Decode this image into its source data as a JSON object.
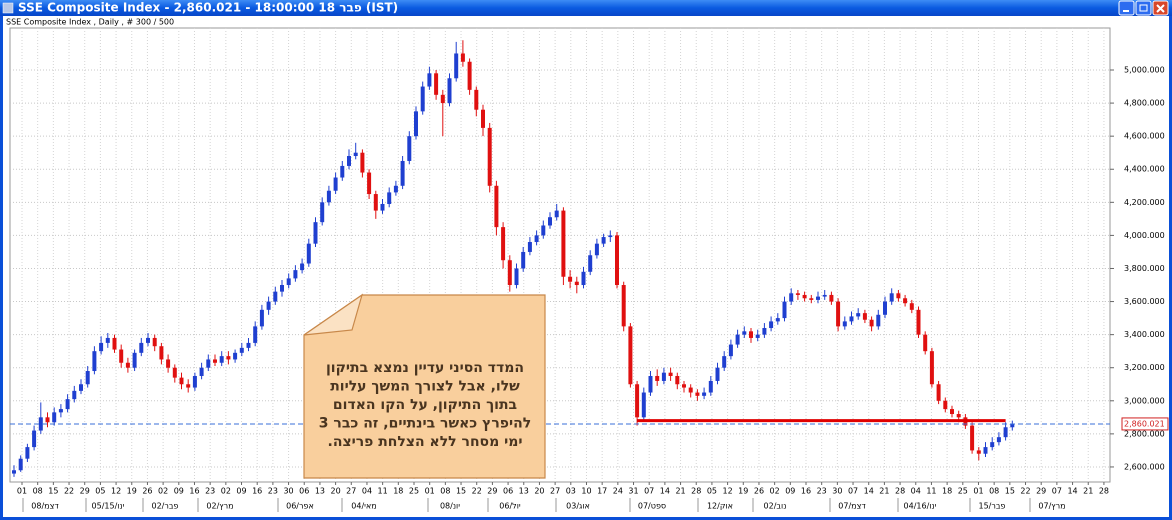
{
  "window_title": "SSE Composite Index - 2,860.021 - 18:00:00  18 פבר (IST)",
  "chart_data": {
    "type": "candlestick",
    "title": "SSE Composite Index , Daily , # 300 / 500",
    "up_color": "#1f3fd0",
    "down_color": "#e01010",
    "ylim": [
      2509,
      5254
    ],
    "yticks": [
      {
        "value": 2600,
        "label": "2,600.000"
      },
      {
        "value": 2800,
        "label": "2,800.000"
      },
      {
        "value": 3000,
        "label": "3,000.000"
      },
      {
        "value": 3200,
        "label": "3,200.000"
      },
      {
        "value": 3400,
        "label": "3,400.000"
      },
      {
        "value": 3600,
        "label": "3,600.000"
      },
      {
        "value": 3800,
        "label": "3,800.000"
      },
      {
        "value": 4000,
        "label": "4,000.000"
      },
      {
        "value": 4200,
        "label": "4,200.000"
      },
      {
        "value": 4400,
        "label": "4,400.000"
      },
      {
        "value": 4600,
        "label": "4,600.000"
      },
      {
        "value": 4800,
        "label": "4,800.000"
      },
      {
        "value": 5000,
        "label": "5,000.000"
      }
    ],
    "grid": true,
    "last_price": {
      "value": 2860.021,
      "label": "2,860.021"
    },
    "level_line": {
      "value": 2880,
      "color": "#e00000"
    },
    "x_day_labels": [
      "01",
      "08",
      "15",
      "22",
      "29",
      "05",
      "12",
      "19",
      "26",
      "02",
      "09",
      "16",
      "23",
      "02",
      "09",
      "16",
      "23",
      "30",
      "06",
      "13",
      "20",
      "27",
      "04",
      "11",
      "18",
      "25",
      "01",
      "08",
      "15",
      "22",
      "29",
      "06",
      "13",
      "20",
      "27",
      "03",
      "10",
      "17",
      "24",
      "31",
      "07",
      "14",
      "21",
      "28",
      "05",
      "12",
      "19",
      "26",
      "02",
      "09",
      "16",
      "23",
      "30",
      "07",
      "14",
      "21",
      "28",
      "04",
      "11",
      "18",
      "25",
      "01",
      "08",
      "15",
      "22",
      "29",
      "07",
      "14",
      "21",
      "28"
    ],
    "x_month_labels": [
      "08/דצמ",
      "05/15/ינו",
      "02/פבר",
      "02/מרץ",
      "06/אפר",
      "04/מאי",
      "08/יונ",
      "06/יול",
      "03/אוג",
      "07/ספט",
      "12/אוק",
      "02/נוב",
      "07/דצמ",
      "04/16/ינו",
      "15/פבר",
      "07/מרץ"
    ],
    "annotation": {
      "lines": [
        "המדד הסיני עדיין נמצא  בתיקון",
        "שלו, אבל לצורך המשך עליות",
        "בתוך התיקון, על הקו האדום",
        "להיפרץ כאשר בינתיים, זה כבר 3",
        "ימי מסחר ללא הצלחת פריצה."
      ]
    },
    "ohlc": [
      [
        2560,
        2610,
        2540,
        2580
      ],
      [
        2580,
        2670,
        2570,
        2650
      ],
      [
        2650,
        2740,
        2630,
        2720
      ],
      [
        2720,
        2850,
        2700,
        2820
      ],
      [
        2820,
        2990,
        2800,
        2900
      ],
      [
        2900,
        2930,
        2840,
        2870
      ],
      [
        2870,
        2960,
        2850,
        2930
      ],
      [
        2930,
        2980,
        2900,
        2950
      ],
      [
        2950,
        3040,
        2930,
        3010
      ],
      [
        3010,
        3090,
        2990,
        3060
      ],
      [
        3060,
        3130,
        3040,
        3100
      ],
      [
        3100,
        3210,
        3080,
        3180
      ],
      [
        3180,
        3330,
        3160,
        3300
      ],
      [
        3300,
        3390,
        3280,
        3350
      ],
      [
        3350,
        3410,
        3320,
        3380
      ],
      [
        3380,
        3400,
        3290,
        3310
      ],
      [
        3310,
        3340,
        3200,
        3230
      ],
      [
        3230,
        3260,
        3170,
        3200
      ],
      [
        3200,
        3310,
        3180,
        3290
      ],
      [
        3290,
        3380,
        3270,
        3350
      ],
      [
        3350,
        3410,
        3330,
        3380
      ],
      [
        3380,
        3400,
        3300,
        3330
      ],
      [
        3330,
        3350,
        3220,
        3250
      ],
      [
        3250,
        3280,
        3170,
        3200
      ],
      [
        3200,
        3220,
        3110,
        3140
      ],
      [
        3140,
        3170,
        3070,
        3100
      ],
      [
        3100,
        3130,
        3050,
        3080
      ],
      [
        3080,
        3170,
        3060,
        3150
      ],
      [
        3150,
        3230,
        3130,
        3200
      ],
      [
        3200,
        3280,
        3180,
        3250
      ],
      [
        3250,
        3280,
        3210,
        3230
      ],
      [
        3230,
        3300,
        3210,
        3270
      ],
      [
        3270,
        3300,
        3220,
        3250
      ],
      [
        3250,
        3310,
        3230,
        3290
      ],
      [
        3290,
        3350,
        3270,
        3320
      ],
      [
        3320,
        3380,
        3300,
        3350
      ],
      [
        3350,
        3480,
        3330,
        3450
      ],
      [
        3450,
        3580,
        3430,
        3550
      ],
      [
        3550,
        3630,
        3520,
        3600
      ],
      [
        3600,
        3690,
        3580,
        3660
      ],
      [
        3660,
        3730,
        3630,
        3700
      ],
      [
        3700,
        3770,
        3680,
        3740
      ],
      [
        3740,
        3820,
        3720,
        3790
      ],
      [
        3790,
        3860,
        3770,
        3830
      ],
      [
        3830,
        3980,
        3810,
        3950
      ],
      [
        3950,
        4110,
        3930,
        4080
      ],
      [
        4080,
        4230,
        4060,
        4200
      ],
      [
        4200,
        4300,
        4180,
        4270
      ],
      [
        4270,
        4380,
        4250,
        4350
      ],
      [
        4350,
        4450,
        4330,
        4420
      ],
      [
        4420,
        4520,
        4400,
        4480
      ],
      [
        4480,
        4560,
        4460,
        4500
      ],
      [
        4500,
        4520,
        4350,
        4380
      ],
      [
        4380,
        4400,
        4220,
        4250
      ],
      [
        4250,
        4270,
        4100,
        4150
      ],
      [
        4150,
        4220,
        4130,
        4190
      ],
      [
        4190,
        4290,
        4170,
        4260
      ],
      [
        4260,
        4330,
        4240,
        4300
      ],
      [
        4300,
        4480,
        4280,
        4450
      ],
      [
        4450,
        4630,
        4430,
        4600
      ],
      [
        4600,
        4780,
        4580,
        4750
      ],
      [
        4750,
        4930,
        4730,
        4900
      ],
      [
        4900,
        5020,
        4880,
        4980
      ],
      [
        4980,
        5000,
        4820,
        4850
      ],
      [
        4850,
        4880,
        4600,
        4800
      ],
      [
        4800,
        4980,
        4780,
        4950
      ],
      [
        4950,
        5170,
        4930,
        5100
      ],
      [
        5100,
        5180,
        5020,
        5050
      ],
      [
        5050,
        5070,
        4850,
        4880
      ],
      [
        4880,
        4900,
        4720,
        4760
      ],
      [
        4760,
        4790,
        4600,
        4650
      ],
      [
        4650,
        4680,
        4260,
        4300
      ],
      [
        4300,
        4330,
        4000,
        4050
      ],
      [
        4050,
        4080,
        3800,
        3850
      ],
      [
        3850,
        3880,
        3660,
        3700
      ],
      [
        3700,
        3830,
        3680,
        3800
      ],
      [
        3800,
        3930,
        3780,
        3900
      ],
      [
        3900,
        3990,
        3880,
        3960
      ],
      [
        3960,
        4030,
        3940,
        4000
      ],
      [
        4000,
        4090,
        3980,
        4060
      ],
      [
        4060,
        4140,
        4040,
        4110
      ],
      [
        4110,
        4190,
        4090,
        4150
      ],
      [
        4150,
        4170,
        3700,
        3750
      ],
      [
        3750,
        3790,
        3680,
        3720
      ],
      [
        3720,
        3750,
        3650,
        3700
      ],
      [
        3700,
        3810,
        3680,
        3780
      ],
      [
        3780,
        3910,
        3760,
        3880
      ],
      [
        3880,
        3980,
        3860,
        3950
      ],
      [
        3950,
        4010,
        3930,
        3990
      ],
      [
        3990,
        4030,
        3960,
        4000
      ],
      [
        4000,
        4020,
        3680,
        3700
      ],
      [
        3700,
        3720,
        3420,
        3450
      ],
      [
        3450,
        3470,
        3080,
        3100
      ],
      [
        3100,
        3120,
        2850,
        2900
      ],
      [
        2900,
        3080,
        2880,
        3050
      ],
      [
        3050,
        3180,
        3030,
        3150
      ],
      [
        3150,
        3190,
        3090,
        3120
      ],
      [
        3120,
        3200,
        3100,
        3170
      ],
      [
        3170,
        3200,
        3120,
        3150
      ],
      [
        3150,
        3170,
        3070,
        3100
      ],
      [
        3100,
        3120,
        3050,
        3080
      ],
      [
        3080,
        3100,
        3020,
        3050
      ],
      [
        3050,
        3070,
        3000,
        3030
      ],
      [
        3030,
        3080,
        3010,
        3050
      ],
      [
        3050,
        3150,
        3030,
        3120
      ],
      [
        3120,
        3230,
        3100,
        3200
      ],
      [
        3200,
        3300,
        3180,
        3270
      ],
      [
        3270,
        3370,
        3250,
        3340
      ],
      [
        3340,
        3430,
        3320,
        3400
      ],
      [
        3400,
        3450,
        3380,
        3420
      ],
      [
        3420,
        3440,
        3350,
        3380
      ],
      [
        3380,
        3430,
        3360,
        3400
      ],
      [
        3400,
        3470,
        3380,
        3440
      ],
      [
        3440,
        3510,
        3420,
        3480
      ],
      [
        3480,
        3530,
        3460,
        3500
      ],
      [
        3500,
        3630,
        3480,
        3600
      ],
      [
        3600,
        3680,
        3580,
        3650
      ],
      [
        3650,
        3670,
        3610,
        3640
      ],
      [
        3640,
        3660,
        3600,
        3620
      ],
      [
        3620,
        3640,
        3590,
        3610
      ],
      [
        3610,
        3660,
        3590,
        3630
      ],
      [
        3630,
        3670,
        3610,
        3640
      ],
      [
        3640,
        3660,
        3580,
        3600
      ],
      [
        3600,
        3620,
        3420,
        3450
      ],
      [
        3450,
        3510,
        3430,
        3480
      ],
      [
        3480,
        3540,
        3460,
        3510
      ],
      [
        3510,
        3560,
        3490,
        3530
      ],
      [
        3530,
        3550,
        3470,
        3490
      ],
      [
        3490,
        3510,
        3420,
        3450
      ],
      [
        3450,
        3550,
        3430,
        3520
      ],
      [
        3520,
        3630,
        3500,
        3600
      ],
      [
        3600,
        3680,
        3580,
        3650
      ],
      [
        3650,
        3670,
        3600,
        3620
      ],
      [
        3620,
        3640,
        3570,
        3590
      ],
      [
        3590,
        3610,
        3530,
        3550
      ],
      [
        3550,
        3570,
        3380,
        3400
      ],
      [
        3400,
        3420,
        3280,
        3300
      ],
      [
        3300,
        3320,
        3080,
        3100
      ],
      [
        3100,
        3120,
        2980,
        3000
      ],
      [
        3000,
        3020,
        2930,
        2950
      ],
      [
        2950,
        2970,
        2900,
        2920
      ],
      [
        2920,
        2940,
        2870,
        2900
      ],
      [
        2900,
        2920,
        2830,
        2850
      ],
      [
        2850,
        2870,
        2680,
        2700
      ],
      [
        2700,
        2720,
        2640,
        2680
      ],
      [
        2680,
        2750,
        2660,
        2720
      ],
      [
        2720,
        2780,
        2700,
        2750
      ],
      [
        2750,
        2810,
        2730,
        2780
      ],
      [
        2780,
        2870,
        2760,
        2840
      ],
      [
        2840,
        2880,
        2820,
        2860
      ]
    ]
  }
}
